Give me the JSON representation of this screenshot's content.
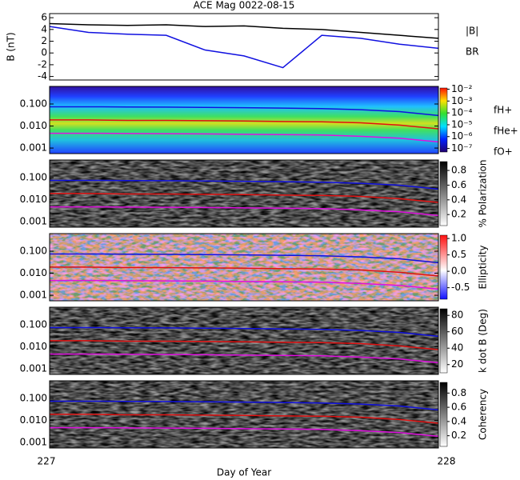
{
  "chart_data": [
    {
      "type": "line",
      "title": "ACE Mag 0022-08-15",
      "ylabel": "B (nT)",
      "x": [
        227,
        227.1,
        227.2,
        227.3,
        227.4,
        227.5,
        227.6,
        227.7,
        227.8,
        227.9,
        228
      ],
      "xlim": [
        227,
        228
      ],
      "ylim": [
        -4.6,
        6.7
      ],
      "yticks": [
        -4,
        -2,
        0,
        2,
        4,
        6
      ],
      "series": [
        {
          "name": "|B|",
          "color": "#000000",
          "values": [
            5,
            4.8,
            4.7,
            4.8,
            4.5,
            4.6,
            4.2,
            4.0,
            3.5,
            3.0,
            2.5
          ]
        },
        {
          "name": "BR",
          "color": "#1010e0",
          "values": [
            4.5,
            3.5,
            3.2,
            3.0,
            0.5,
            -0.5,
            -2.5,
            3.0,
            2.5,
            1.5,
            0.8
          ]
        }
      ]
    },
    {
      "type": "spectrogram",
      "yscale": "log",
      "colormap": "rainbow",
      "x": [
        227,
        227.1,
        227.2,
        227.3,
        227.4,
        227.5,
        227.6,
        227.7,
        227.8,
        227.9,
        228
      ],
      "xlim": [
        227,
        228
      ],
      "ylim": [
        0.00056,
        0.63
      ],
      "yticks": [
        {
          "value": 0.1,
          "label": "0.100"
        },
        {
          "value": 0.01,
          "label": "0.010"
        },
        {
          "value": 0.001,
          "label": "0.001"
        }
      ],
      "clim": [
        -7.3,
        -1.9
      ],
      "cticks": [
        {
          "value": -2,
          "label": "10⁻²"
        },
        {
          "value": -3,
          "label": "10⁻³"
        },
        {
          "value": -4,
          "label": "10⁻⁴"
        },
        {
          "value": -5,
          "label": "10⁻⁵"
        },
        {
          "value": -6,
          "label": "10⁻⁶"
        },
        {
          "value": -7,
          "label": "10⁻⁷"
        }
      ],
      "series": [
        {
          "name": "fH+",
          "color": "#1010e0",
          "values": [
            0.075,
            0.075,
            0.073,
            0.072,
            0.07,
            0.068,
            0.065,
            0.062,
            0.055,
            0.045,
            0.03
          ]
        },
        {
          "name": "fHe+",
          "color": "#e01010",
          "values": [
            0.019,
            0.019,
            0.018,
            0.018,
            0.0175,
            0.017,
            0.016,
            0.0155,
            0.014,
            0.011,
            0.0075
          ]
        },
        {
          "name": "fO+",
          "color": "#e010e0",
          "values": [
            0.0047,
            0.0047,
            0.0046,
            0.0045,
            0.0044,
            0.0042,
            0.0041,
            0.0039,
            0.0034,
            0.0028,
            0.0019
          ]
        }
      ]
    },
    {
      "type": "spectrogram",
      "yscale": "log",
      "colormap": "gray",
      "clabel": "% Polarization",
      "x": [
        227,
        227.1,
        227.2,
        227.3,
        227.4,
        227.5,
        227.6,
        227.7,
        227.8,
        227.9,
        228
      ],
      "xlim": [
        227,
        228
      ],
      "ylim": [
        0.00056,
        0.63
      ],
      "yticks": [
        {
          "value": 0.1,
          "label": "0.100"
        },
        {
          "value": 0.01,
          "label": "0.010"
        },
        {
          "value": 0.001,
          "label": "0.001"
        }
      ],
      "clim": [
        0.05,
        0.92
      ],
      "cticks": [
        0.2,
        0.4,
        0.6,
        0.8
      ],
      "series": [
        {
          "color": "#1010e0",
          "values": [
            0.075,
            0.075,
            0.073,
            0.072,
            0.07,
            0.068,
            0.065,
            0.062,
            0.055,
            0.045,
            0.03
          ]
        },
        {
          "color": "#e01010",
          "values": [
            0.019,
            0.019,
            0.018,
            0.018,
            0.0175,
            0.017,
            0.016,
            0.0155,
            0.014,
            0.011,
            0.0075
          ]
        },
        {
          "color": "#e010e0",
          "values": [
            0.0047,
            0.0047,
            0.0046,
            0.0045,
            0.0044,
            0.0042,
            0.0041,
            0.0039,
            0.0034,
            0.0028,
            0.0019
          ]
        }
      ]
    },
    {
      "type": "spectrogram",
      "yscale": "log",
      "colormap": "bwr",
      "clabel": "Ellipticity",
      "x": [
        227,
        227.1,
        227.2,
        227.3,
        227.4,
        227.5,
        227.6,
        227.7,
        227.8,
        227.9,
        228
      ],
      "xlim": [
        227,
        228
      ],
      "ylim": [
        0.00056,
        0.63
      ],
      "yticks": [
        {
          "value": 0.1,
          "label": "0.100"
        },
        {
          "value": 0.01,
          "label": "0.010"
        },
        {
          "value": 0.001,
          "label": "0.001"
        }
      ],
      "clim": [
        -0.85,
        1.1
      ],
      "cticks": [
        -0.5,
        {
          "value": 0,
          "label": "0.0"
        },
        0.5,
        {
          "value": 1,
          "label": "1.0"
        }
      ],
      "series": [
        {
          "color": "#1010e0",
          "values": [
            0.075,
            0.075,
            0.073,
            0.072,
            0.07,
            0.068,
            0.065,
            0.062,
            0.055,
            0.045,
            0.03
          ]
        },
        {
          "color": "#e01010",
          "values": [
            0.019,
            0.019,
            0.018,
            0.018,
            0.0175,
            0.017,
            0.016,
            0.0155,
            0.014,
            0.011,
            0.0075
          ]
        },
        {
          "color": "#e010e0",
          "values": [
            0.0047,
            0.0047,
            0.0046,
            0.0045,
            0.0044,
            0.0042,
            0.0041,
            0.0039,
            0.0034,
            0.0028,
            0.0019
          ]
        }
      ]
    },
    {
      "type": "spectrogram",
      "yscale": "log",
      "colormap": "gray",
      "clabel": "k dot B (Deg)",
      "x": [
        227,
        227.1,
        227.2,
        227.3,
        227.4,
        227.5,
        227.6,
        227.7,
        227.8,
        227.9,
        228
      ],
      "xlim": [
        227,
        228
      ],
      "ylim": [
        0.00056,
        0.63
      ],
      "yticks": [
        {
          "value": 0.1,
          "label": "0.100"
        },
        {
          "value": 0.01,
          "label": "0.010"
        },
        {
          "value": 0.001,
          "label": "0.001"
        }
      ],
      "clim": [
        10,
        88
      ],
      "cticks": [
        20,
        40,
        60,
        80
      ],
      "series": [
        {
          "color": "#1010e0",
          "values": [
            0.075,
            0.075,
            0.073,
            0.072,
            0.07,
            0.068,
            0.065,
            0.062,
            0.055,
            0.045,
            0.03
          ]
        },
        {
          "color": "#e01010",
          "values": [
            0.019,
            0.019,
            0.018,
            0.018,
            0.0175,
            0.017,
            0.016,
            0.0155,
            0.014,
            0.011,
            0.0075
          ]
        },
        {
          "color": "#e010e0",
          "values": [
            0.0047,
            0.0047,
            0.0046,
            0.0045,
            0.0044,
            0.0042,
            0.0041,
            0.0039,
            0.0034,
            0.0028,
            0.0019
          ]
        }
      ]
    },
    {
      "type": "spectrogram",
      "yscale": "log",
      "colormap": "gray",
      "clabel": "Coherency",
      "xlabel": "Day of Year",
      "x": [
        227,
        227.1,
        227.2,
        227.3,
        227.4,
        227.5,
        227.6,
        227.7,
        227.8,
        227.9,
        228
      ],
      "xlim": [
        227,
        228
      ],
      "xticks": [
        227,
        228
      ],
      "ylim": [
        0.00056,
        0.63
      ],
      "yticks": [
        {
          "value": 0.1,
          "label": "0.100"
        },
        {
          "value": 0.01,
          "label": "0.010"
        },
        {
          "value": 0.001,
          "label": "0.001"
        }
      ],
      "clim": [
        0.05,
        0.95
      ],
      "cticks": [
        0.2,
        0.4,
        0.6,
        0.8
      ],
      "series": [
        {
          "color": "#1010e0",
          "values": [
            0.075,
            0.075,
            0.073,
            0.072,
            0.07,
            0.068,
            0.065,
            0.062,
            0.055,
            0.045,
            0.03
          ]
        },
        {
          "color": "#e01010",
          "values": [
            0.019,
            0.019,
            0.018,
            0.018,
            0.0175,
            0.017,
            0.016,
            0.0155,
            0.014,
            0.011,
            0.0075
          ]
        },
        {
          "color": "#e010e0",
          "values": [
            0.0047,
            0.0047,
            0.0046,
            0.0045,
            0.0044,
            0.0042,
            0.0041,
            0.0039,
            0.0034,
            0.0028,
            0.0019
          ]
        }
      ]
    }
  ]
}
